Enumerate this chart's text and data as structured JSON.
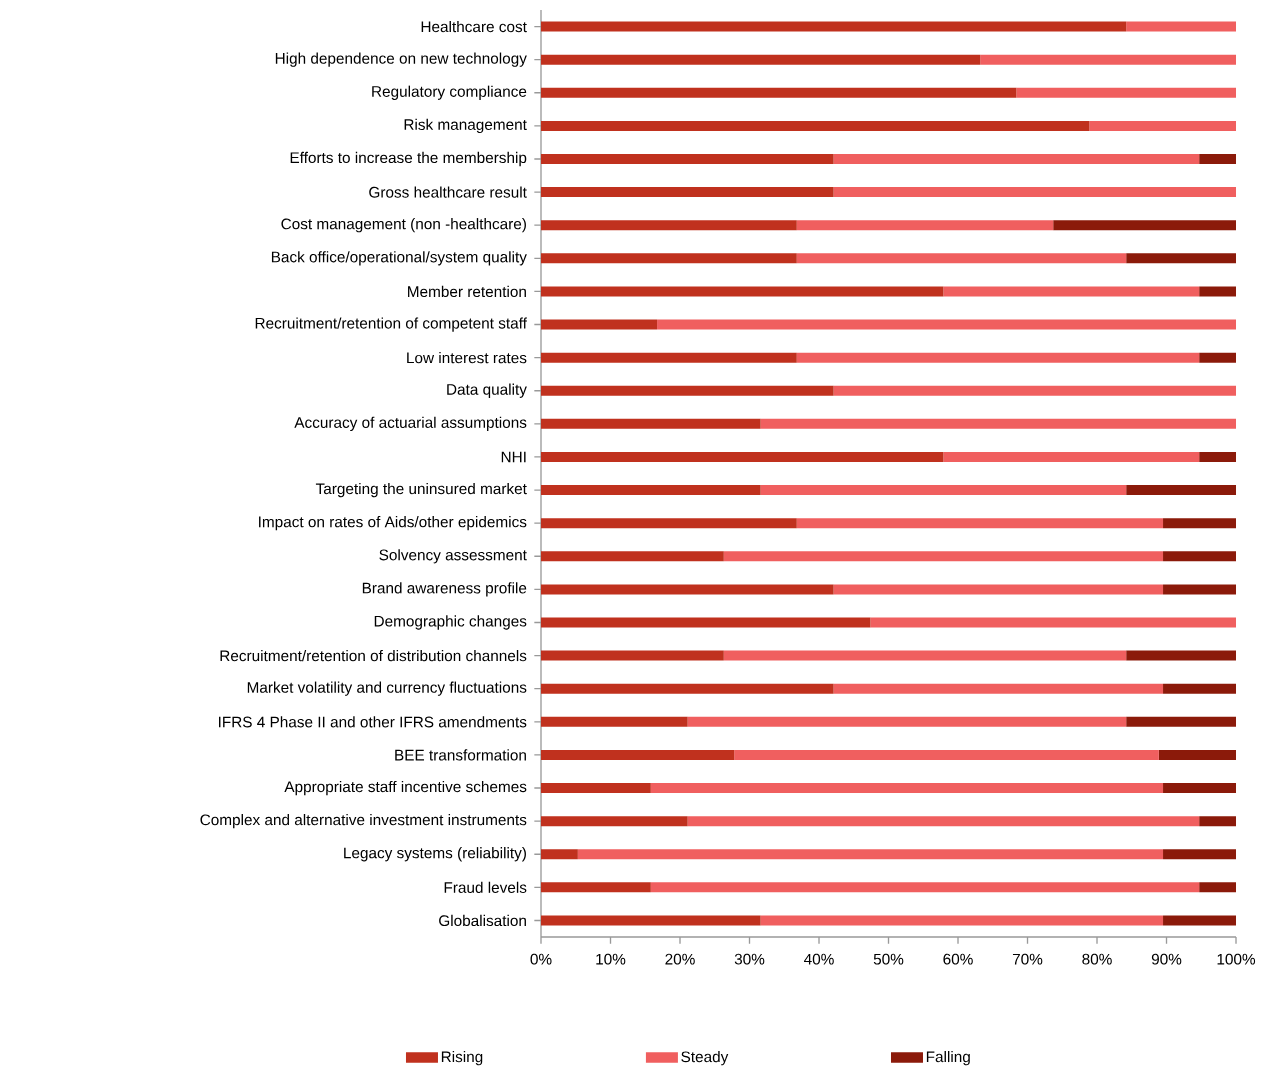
{
  "chart_data": {
    "type": "bar",
    "orientation": "horizontal",
    "stacked": true,
    "legend": "bottom",
    "categories": [
      "Healthcare cost",
      "High dependence on new technology",
      "Regulatory compliance",
      "Risk management",
      "Efforts to increase  the membership",
      "Gross healthcare result",
      "Cost management (non -healthcare)",
      "Back office/operational/system quality",
      "Member retention",
      "Recruitment/retention of competent staff",
      "Low interest rates",
      "Data quality",
      "Accuracy of actuarial assumptions",
      "NHI",
      "Targeting the uninsured market",
      "Impact on rates of Aids/other epidemics",
      "Solvency assessment",
      "Brand awareness profile",
      "Demographic changes",
      "Recruitment/retention of distribution channels",
      "Market volatility and currency fluctuations",
      "IFRS 4 Phase II and other IFRS amendments",
      "BEE transformation",
      "Appropriate staff incentive schemes",
      "Complex and alternative investment instruments",
      "Legacy systems (reliability)",
      "Fraud levels",
      "Globalisation"
    ],
    "series": [
      {
        "name": "Rising",
        "color": "#c0311e",
        "values": [
          84.2,
          63.2,
          68.4,
          78.9,
          42.1,
          42.1,
          36.8,
          36.8,
          57.9,
          16.7,
          36.8,
          42.1,
          31.6,
          57.9,
          31.6,
          36.8,
          26.3,
          42.1,
          47.4,
          26.3,
          42.1,
          21.1,
          27.8,
          15.8,
          21.1,
          5.3,
          15.8,
          31.6
        ]
      },
      {
        "name": "Steady",
        "color": "#f05f5f",
        "values": [
          15.8,
          36.8,
          31.6,
          21.1,
          52.6,
          57.9,
          36.9,
          47.4,
          36.8,
          83.3,
          57.9,
          57.9,
          68.4,
          36.8,
          52.6,
          52.7,
          63.2,
          47.4,
          52.6,
          57.9,
          47.4,
          63.1,
          61.1,
          73.7,
          73.6,
          84.2,
          78.9,
          57.9
        ]
      },
      {
        "name": "Falling",
        "color": "#8b1a0a",
        "values": [
          0,
          0,
          0,
          0,
          5.3,
          0,
          26.3,
          15.8,
          5.3,
          0,
          5.3,
          0,
          0,
          5.3,
          15.8,
          10.5,
          10.5,
          10.5,
          0,
          15.8,
          10.5,
          15.8,
          11.1,
          10.5,
          5.3,
          10.5,
          5.3,
          10.5
        ]
      }
    ],
    "xlim": [
      0,
      100
    ],
    "xticks": [
      {
        "value": 0,
        "label": "0%"
      },
      {
        "value": 10,
        "label": "10%"
      },
      {
        "value": 20,
        "label": "20%"
      },
      {
        "value": 30,
        "label": "30%"
      },
      {
        "value": 40,
        "label": "40%"
      },
      {
        "value": 50,
        "label": "50%"
      },
      {
        "value": 60,
        "label": "60%"
      },
      {
        "value": 70,
        "label": "70%"
      },
      {
        "value": 80,
        "label": "80%"
      },
      {
        "value": 90,
        "label": "90%"
      },
      {
        "value": 100,
        "label": "100%"
      }
    ]
  }
}
